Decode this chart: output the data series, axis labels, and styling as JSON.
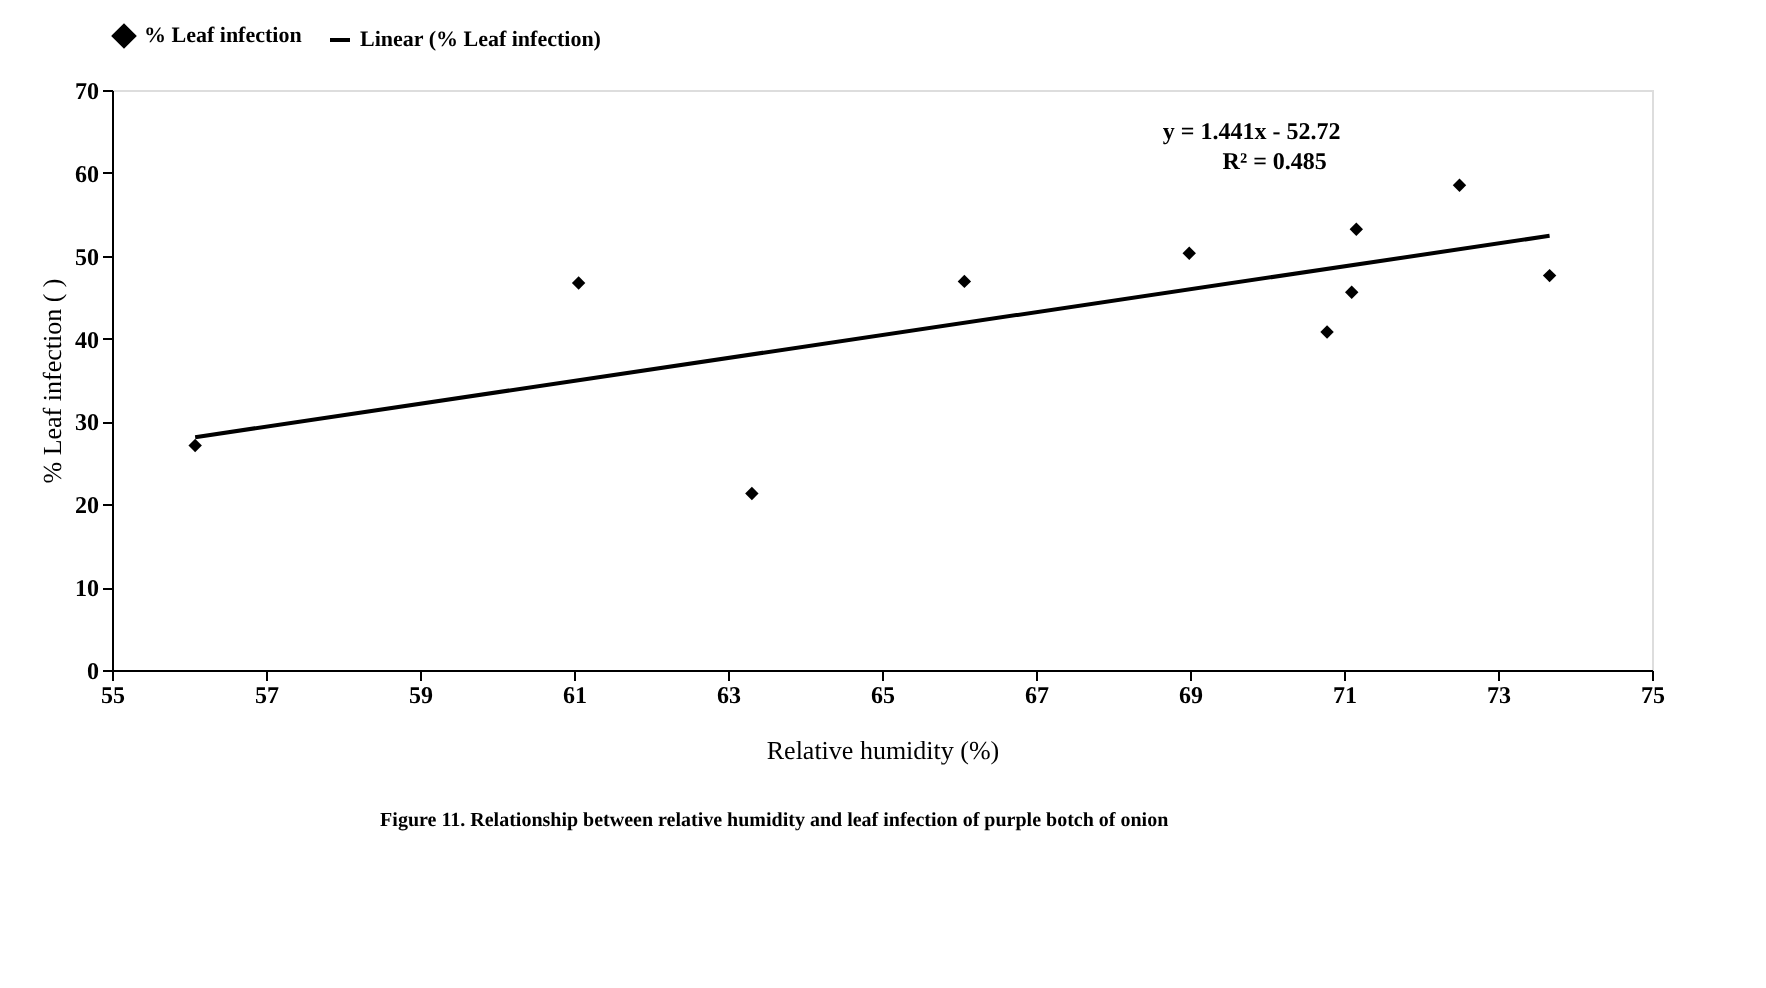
{
  "chart_data": {
    "type": "scatter",
    "xlabel": "Relative humidity (%)",
    "ylabel": "% Leaf infection ( )",
    "xlim": [
      55,
      75
    ],
    "xticks": [
      55,
      57,
      59,
      61,
      63,
      65,
      67,
      69,
      71,
      73,
      75
    ],
    "ylim": [
      0,
      70
    ],
    "yticks": [
      0,
      10,
      20,
      30,
      40,
      50,
      60,
      70
    ],
    "grid": false,
    "legend": "top",
    "marker": "diamond",
    "series": [
      {
        "name": "% Leaf infection",
        "type": "scatter",
        "color": "#000000",
        "x": [
          56.08,
          61.06,
          63.31,
          66.07,
          68.99,
          70.78,
          71.1,
          71.16,
          72.5,
          73.67
        ],
        "values": [
          27.1,
          46.7,
          21.3,
          46.9,
          50.3,
          40.8,
          45.6,
          53.2,
          58.5,
          47.6
        ]
      },
      {
        "name": "Linear (% Leaf infection)",
        "type": "line",
        "color": "#000000",
        "line_style": "solid",
        "marker": "none",
        "x": [
          56.08,
          73.67
        ],
        "values": [
          28.1,
          52.4
        ]
      }
    ],
    "annotations": [
      "y = 1.441x - 52.72",
      "R² = 0.485",
      "Figure 11. Relationship between relative humidity and leaf infection of purple botch of onion"
    ]
  }
}
